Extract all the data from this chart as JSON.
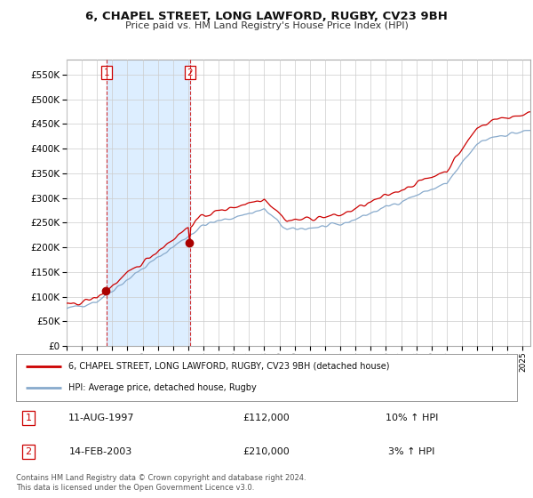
{
  "title_line1": "6, CHAPEL STREET, LONG LAWFORD, RUGBY, CV23 9BH",
  "title_line2": "Price paid vs. HM Land Registry's House Price Index (HPI)",
  "legend_label1": "6, CHAPEL STREET, LONG LAWFORD, RUGBY, CV23 9BH (detached house)",
  "legend_label2": "HPI: Average price, detached house, Rugby",
  "sale1_date": "11-AUG-1997",
  "sale1_price": "£112,000",
  "sale1_hpi": "10% ↑ HPI",
  "sale1_year": 1997.615,
  "sale2_date": "14-FEB-2003",
  "sale2_price": "£210,000",
  "sale2_hpi": "3% ↑ HPI",
  "sale2_year": 2003.12,
  "footer": "Contains HM Land Registry data © Crown copyright and database right 2024.\nThis data is licensed under the Open Government Licence v3.0.",
  "line_color_red": "#cc0000",
  "line_color_blue": "#88aacc",
  "shade_color": "#ddeeff",
  "marker_color_red": "#aa0000",
  "ylim_min": 0,
  "ylim_max": 580000,
  "background_color": "#ffffff",
  "plot_bg_color": "#ffffff",
  "grid_color": "#cccccc"
}
